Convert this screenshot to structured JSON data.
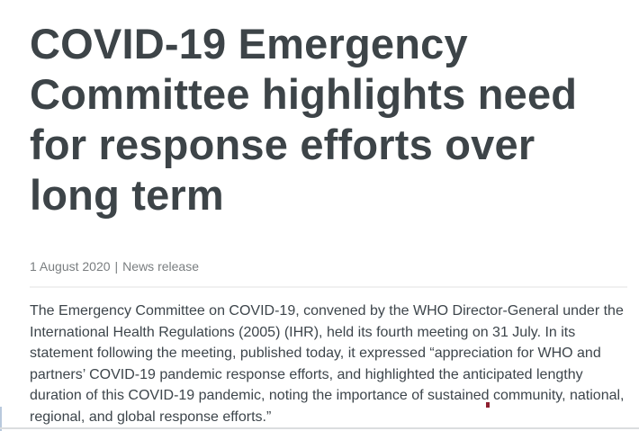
{
  "article": {
    "title": "COVID-19 Emergency Committee highlights need for response efforts over long term",
    "meta": {
      "date": "1 August 2020",
      "separator": "|",
      "category": "News release"
    },
    "body": "The Emergency Committee on COVID-19, convened by the WHO Director-General under the International Health Regulations (2005) (IHR), held its fourth meeting on 31 July. In its statement following the meeting, published today, it expressed “appreciation for WHO and partners’ COVID-19 pandemic response efforts, and highlighted the anticipated lengthy duration of this COVID-19 pandemic, noting the importance of sustained community, national, regional, and global response efforts.”"
  },
  "colors": {
    "background": "#ffffff",
    "headline": "#3d4448",
    "body_text": "#3d454b",
    "meta_text": "#7a7e80",
    "divider": "#f0f0f0",
    "bottom_rule": "#dbdddf",
    "accent_edge": "#b9c9dd",
    "red_fragment": "#8e1f2f"
  }
}
